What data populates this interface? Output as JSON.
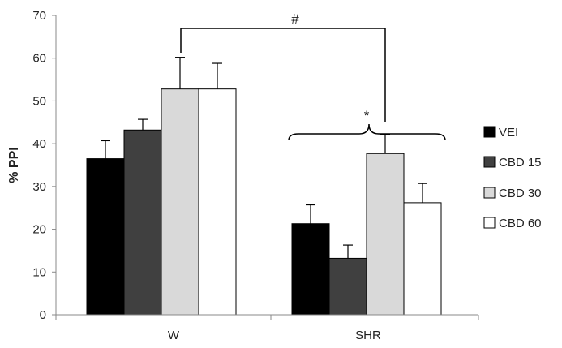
{
  "chart_data": {
    "type": "bar",
    "title": "",
    "xlabel": "",
    "ylabel": "% PPI",
    "ylim": [
      0,
      70
    ],
    "yticks": [
      0,
      10,
      20,
      30,
      40,
      50,
      60,
      70
    ],
    "categories": [
      "W",
      "SHR"
    ],
    "series": [
      {
        "name": "VEI",
        "color": "#000000",
        "values": [
          36.5,
          21.3
        ],
        "errors": [
          4.2,
          4.4
        ]
      },
      {
        "name": "CBD 15",
        "color": "#404040",
        "values": [
          43.2,
          13.2
        ],
        "errors": [
          2.5,
          3.1
        ]
      },
      {
        "name": "CBD 30",
        "color": "#d9d9d9",
        "values": [
          52.8,
          37.7
        ],
        "errors": [
          7.4,
          4.5
        ]
      },
      {
        "name": "CBD 60",
        "color": "#ffffff",
        "values": [
          52.8,
          26.2
        ],
        "errors": [
          6.0,
          4.5
        ]
      }
    ],
    "annotations": {
      "hash_label": "#",
      "star_label": "*"
    },
    "legend_position": "right"
  }
}
